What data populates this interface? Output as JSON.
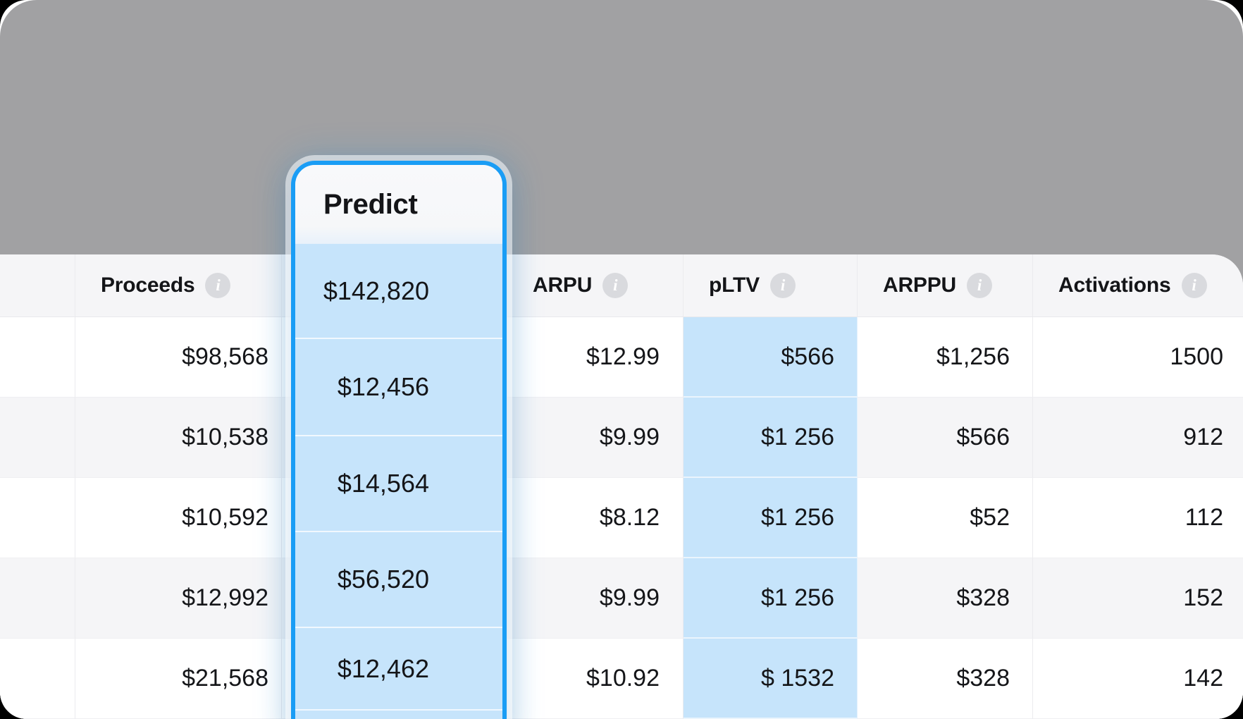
{
  "colors": {
    "accent_blue": "#1a9df5",
    "highlight_fill": "#c6e4fb",
    "panel_gray": "#a1a1a3",
    "info_icon_bg": "#d9dade"
  },
  "icons": {
    "info_glyph": "i"
  },
  "predict_card": {
    "title": "Predict",
    "values": [
      "$142,820",
      "$12,456",
      "$14,564",
      "$56,520",
      "$12,462"
    ]
  },
  "table": {
    "columns": [
      {
        "key": "rowlabel",
        "label": "",
        "info": false
      },
      {
        "key": "proceeds",
        "label": "Proceeds",
        "info": true
      },
      {
        "key": "predict",
        "label": "",
        "info": false
      },
      {
        "key": "arpu",
        "label": "ARPU",
        "info": true
      },
      {
        "key": "pltv",
        "label": "pLTV",
        "info": true,
        "highlight": true
      },
      {
        "key": "arppu",
        "label": "ARPPU",
        "info": true
      },
      {
        "key": "activations",
        "label": "Activations",
        "info": true
      }
    ],
    "rows": [
      {
        "rowlabel": "",
        "proceeds": "$98,568",
        "predict": "",
        "arpu": "$12.99",
        "pltv": "$566",
        "arppu": "$1,256",
        "activations": "1500"
      },
      {
        "rowlabel": "",
        "proceeds": "$10,538",
        "predict": "",
        "arpu": "$9.99",
        "pltv": "$1 256",
        "arppu": "$566",
        "activations": "912"
      },
      {
        "rowlabel": "",
        "proceeds": "$10,592",
        "predict": "",
        "arpu": "$8.12",
        "pltv": "$1 256",
        "arppu": "$52",
        "activations": "112"
      },
      {
        "rowlabel": "",
        "proceeds": "$12,992",
        "predict": "",
        "arpu": "$9.99",
        "pltv": "$1 256",
        "arppu": "$328",
        "activations": "152"
      },
      {
        "rowlabel": "",
        "proceeds": "$21,568",
        "predict": "",
        "arpu": "$10.92",
        "pltv": "$ 1532",
        "arppu": "$328",
        "activations": "142"
      }
    ]
  }
}
